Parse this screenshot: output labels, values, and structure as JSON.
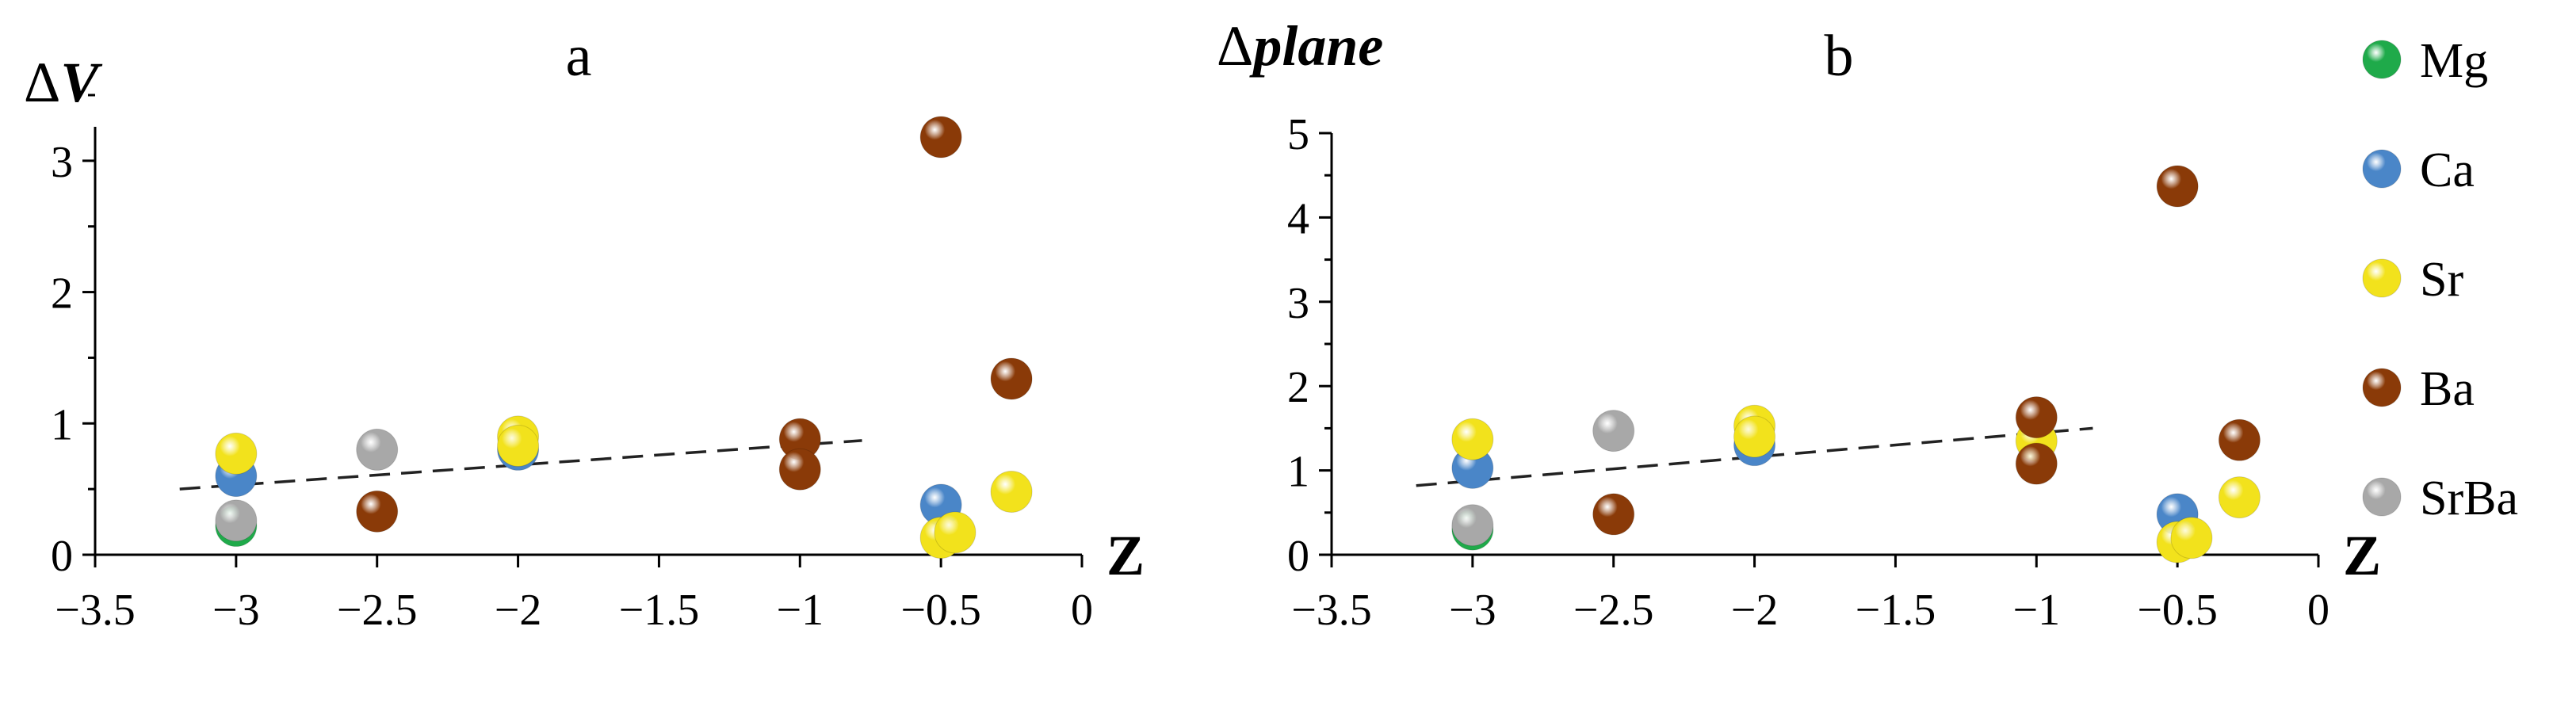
{
  "chart_data": [
    {
      "type": "scatter",
      "title": "a",
      "ylabel_symbol": "Δ",
      "ylabel_var": "V",
      "xlabel": "Z",
      "xlim": [
        -3.5,
        0
      ],
      "ylim": [
        0,
        3.5
      ],
      "xticks": [
        "−3.5",
        "−3",
        "−2.5",
        "−2",
        "−1.5",
        "−1",
        "−0.5",
        "0"
      ],
      "xtick_values": [
        -3.5,
        -3,
        -2.5,
        -2,
        -1.5,
        -1,
        -0.5,
        0
      ],
      "yticks": [
        "0",
        "1",
        "2",
        "3"
      ],
      "ytick_values": [
        0,
        1,
        2,
        3
      ],
      "trendline": {
        "style": "dashed",
        "x": [
          -3.2,
          -0.78
        ],
        "y": [
          0.5,
          0.87
        ]
      },
      "series": [
        {
          "name": "Mg",
          "points": [
            [
              -3.0,
              0.22
            ]
          ]
        },
        {
          "name": "Ca",
          "points": [
            [
              -3.0,
              0.6
            ],
            [
              -2.0,
              0.8
            ],
            [
              -0.5,
              0.38
            ]
          ]
        },
        {
          "name": "Sr",
          "points": [
            [
              -3.0,
              0.77
            ],
            [
              -2.0,
              0.9
            ],
            [
              -2.0,
              0.83
            ],
            [
              -0.5,
              0.13
            ],
            [
              -0.45,
              0.17
            ],
            [
              -0.25,
              0.48
            ]
          ]
        },
        {
          "name": "Ba",
          "points": [
            [
              -2.5,
              0.33
            ],
            [
              -1.0,
              0.88
            ],
            [
              -1.0,
              0.65
            ],
            [
              -0.5,
              3.18
            ],
            [
              -0.25,
              1.34
            ]
          ]
        },
        {
          "name": "SrBa",
          "points": [
            [
              -3.0,
              0.26
            ],
            [
              -2.5,
              0.8
            ]
          ]
        }
      ]
    },
    {
      "type": "scatter",
      "title": "b",
      "ylabel_symbol": "Δ",
      "ylabel_var": "plane",
      "xlabel": "Z",
      "xlim": [
        -3.5,
        0
      ],
      "ylim": [
        0,
        5
      ],
      "xticks": [
        "−3.5",
        "−3",
        "−2.5",
        "−2",
        "−1.5",
        "−1",
        "−0.5",
        "0"
      ],
      "xtick_values": [
        -3.5,
        -3,
        -2.5,
        -2,
        -1.5,
        -1,
        -0.5,
        0
      ],
      "yticks": [
        "0",
        "1",
        "2",
        "3",
        "4",
        "5"
      ],
      "ytick_values": [
        0,
        1,
        2,
        3,
        4,
        5
      ],
      "trendline": {
        "style": "dashed",
        "x": [
          -3.2,
          -0.8
        ],
        "y": [
          0.82,
          1.5
        ]
      },
      "series": [
        {
          "name": "Mg",
          "points": [
            [
              -3.0,
              0.3
            ]
          ]
        },
        {
          "name": "Ca",
          "points": [
            [
              -3.0,
              1.03
            ],
            [
              -2.0,
              1.3
            ],
            [
              -0.5,
              0.48
            ]
          ]
        },
        {
          "name": "Sr",
          "points": [
            [
              -3.0,
              1.37
            ],
            [
              -2.0,
              1.53
            ],
            [
              -2.0,
              1.4
            ],
            [
              -1.0,
              1.35
            ],
            [
              -0.5,
              0.15
            ],
            [
              -0.45,
              0.2
            ],
            [
              -0.28,
              0.68
            ]
          ]
        },
        {
          "name": "Ba",
          "points": [
            [
              -2.5,
              0.48
            ],
            [
              -1.0,
              1.63
            ],
            [
              -1.0,
              1.08
            ],
            [
              -0.5,
              4.37
            ],
            [
              -0.28,
              1.36
            ]
          ]
        },
        {
          "name": "SrBa",
          "points": [
            [
              -3.0,
              0.35
            ],
            [
              -2.5,
              1.47
            ]
          ]
        }
      ]
    }
  ],
  "legend": {
    "placement": "right",
    "entries": [
      {
        "name": "Mg",
        "color": "#1faa4a"
      },
      {
        "name": "Ca",
        "color": "#4a86c8"
      },
      {
        "name": "Sr",
        "color": "#f2e21c"
      },
      {
        "name": "Ba",
        "color": "#8a3a08"
      },
      {
        "name": "SrBa",
        "color": "#a8a8a8"
      }
    ]
  }
}
